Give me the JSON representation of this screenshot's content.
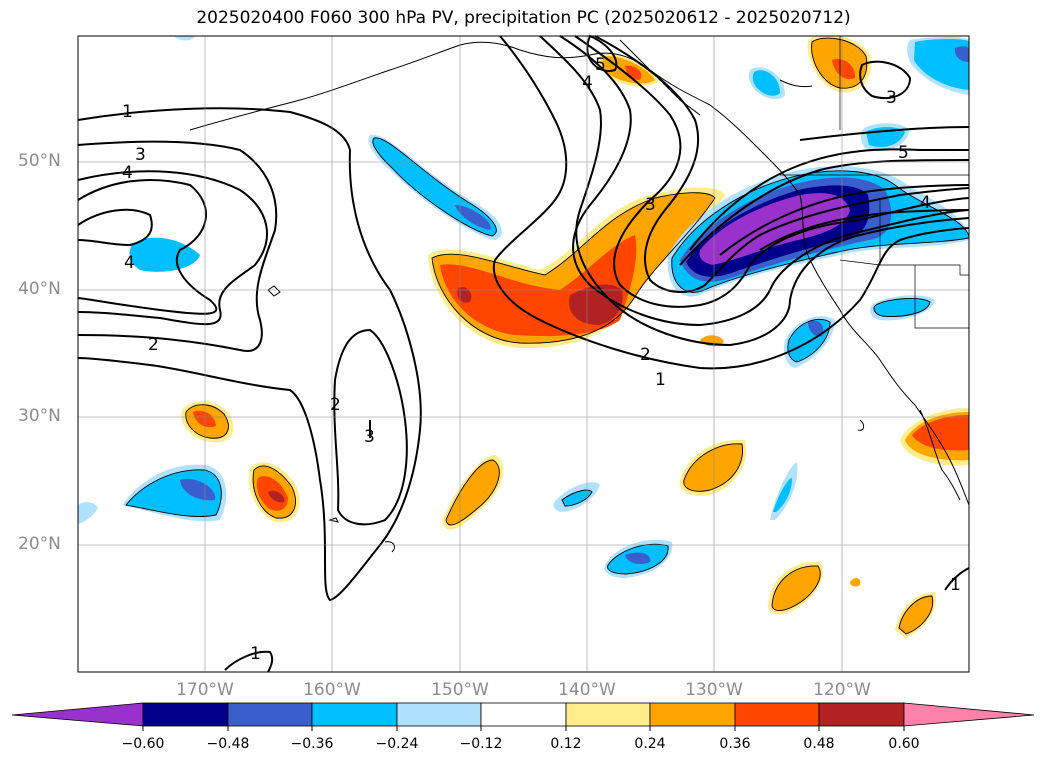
{
  "title": "2025020400 F060 300 hPa PV, precipitation PC (2025020612 - 2025020712)",
  "lat_labels": [
    "50°N",
    "40°N",
    "30°N",
    "20°N"
  ],
  "lon_labels": [
    "170°W",
    "160°W",
    "150°W",
    "140°W",
    "130°W",
    "120°W"
  ],
  "contour_labels": [
    "1",
    "3",
    "4",
    "4",
    "2",
    "1",
    "2",
    "3",
    "4",
    "5",
    "5",
    "3",
    "2",
    "1",
    "4",
    "3",
    "1"
  ],
  "colorbar": {
    "ticks": [
      "−0.60",
      "−0.48",
      "−0.36",
      "−0.24",
      "−0.12",
      "0.12",
      "0.24",
      "0.36",
      "0.48",
      "0.60"
    ],
    "colors": [
      "#9932cc",
      "#00008b",
      "#3a5fcd",
      "#00bfff",
      "#b0e2ff",
      "#ffffff",
      "#ffec8b",
      "#ffa500",
      "#ff4500",
      "#b22222",
      "#ff82ab"
    ]
  }
}
